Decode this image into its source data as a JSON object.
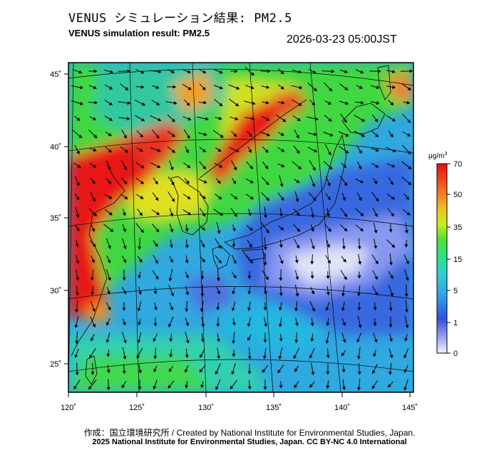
{
  "title_jp": "VENUS シミュレーション結果: PM2.5",
  "title_en": "VENUS simulation result: PM2.5",
  "datetime": "2026-03-23 05:00JST",
  "lat_labels": [
    "45˚",
    "40˚",
    "35˚",
    "30˚",
    "25˚"
  ],
  "lon_labels": [
    "120˚",
    "125˚",
    "130˚",
    "135˚",
    "140˚",
    "145˚"
  ],
  "colorbar": {
    "unit_base": "μg/m",
    "unit_exp": "3",
    "ticks": [
      "70",
      "50",
      "35",
      "15",
      "5",
      "1",
      "0"
    ],
    "colors": [
      "#e8e8f8",
      "#3050e0",
      "#20b0e0",
      "#20e0a0",
      "#40e030",
      "#c8f020",
      "#f0c020",
      "#f07020",
      "#e81818"
    ]
  },
  "credit_line1": "作成：国立環境研究所 / Created by National Institute for Environmental Studies, Japan.",
  "credit_line2": "2025 National Institute for Environmental Studies, Japan. CC BY-NC 4.0 International"
}
